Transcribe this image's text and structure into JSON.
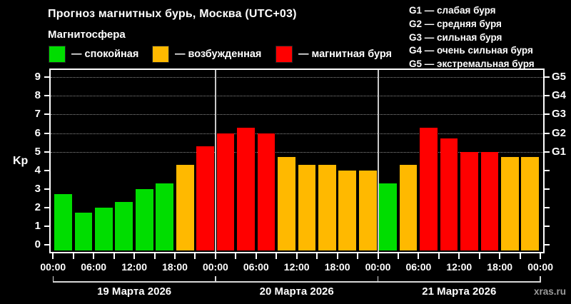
{
  "header": {
    "title": "Прогноз магнитных бурь, Москва (UTC+03)",
    "subtitle": "Магнитосфера"
  },
  "legend": {
    "items": [
      {
        "key": "quiet",
        "label": "— спокойная",
        "color": "#00dd00"
      },
      {
        "key": "unsettled",
        "label": "— возбужденная",
        "color": "#ffb900"
      },
      {
        "key": "storm",
        "label": "— магнитная буря",
        "color": "#ff0000"
      }
    ]
  },
  "storm_scale": {
    "items": [
      {
        "label": "G1 — слабая буря"
      },
      {
        "label": "G2 — средняя буря"
      },
      {
        "label": "G3 — сильная буря"
      },
      {
        "label": "G4 — очень сильная буря"
      },
      {
        "label": "G5 — экстремальная буря"
      }
    ]
  },
  "watermark": "xras.ru",
  "chart_data": {
    "type": "bar",
    "title": "Прогноз магнитных бурь, Москва (UTC+03)",
    "xlabel": "",
    "ylabel": "Kp",
    "ylim": [
      0,
      9
    ],
    "y_ticks": [
      0,
      1,
      2,
      3,
      4,
      5,
      6,
      7,
      8,
      9
    ],
    "gridlines_at_kp": [
      5,
      6,
      7,
      8,
      9
    ],
    "grid": "dotted horizontal at storm levels only",
    "legend_position": "top",
    "hours_per_bar": 3,
    "x_tick_labels": [
      "00:00",
      "06:00",
      "12:00",
      "18:00",
      "00:00",
      "06:00",
      "12:00",
      "18:00",
      "00:00",
      "06:00",
      "12:00",
      "18:00",
      "00:00"
    ],
    "right_axis": [
      {
        "label": "G1",
        "kp": 5
      },
      {
        "label": "G2",
        "kp": 6
      },
      {
        "label": "G3",
        "kp": 7
      },
      {
        "label": "G4",
        "kp": 8
      },
      {
        "label": "G5",
        "kp": 9
      }
    ],
    "colors": {
      "quiet": "#00dd00",
      "unsettled": "#ffb900",
      "storm": "#ff0000"
    },
    "days": [
      {
        "date": "19 Марта 2026",
        "values": [
          2.7,
          1.7,
          2.0,
          2.3,
          3.0,
          3.3,
          4.3,
          5.3
        ],
        "levels": [
          "quiet",
          "quiet",
          "quiet",
          "quiet",
          "quiet",
          "quiet",
          "unsettled",
          "storm"
        ]
      },
      {
        "date": "20 Марта 2026",
        "values": [
          6.0,
          6.3,
          6.0,
          4.7,
          4.3,
          4.3,
          4.0,
          4.0
        ],
        "levels": [
          "storm",
          "storm",
          "storm",
          "unsettled",
          "unsettled",
          "unsettled",
          "unsettled",
          "unsettled"
        ]
      },
      {
        "date": "21 Марта 2026",
        "values": [
          3.3,
          4.3,
          6.3,
          5.7,
          5.0,
          5.0,
          4.7,
          4.7
        ],
        "levels": [
          "quiet",
          "unsettled",
          "storm",
          "storm",
          "storm",
          "storm",
          "unsettled",
          "unsettled"
        ]
      }
    ]
  }
}
